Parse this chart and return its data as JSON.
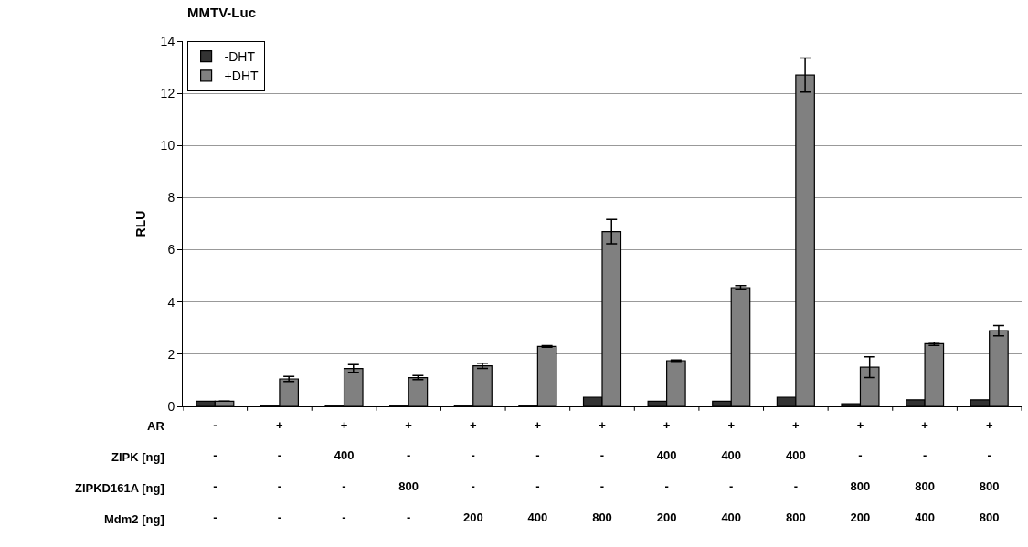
{
  "chart_data": {
    "type": "bar",
    "title": "MMTV-Luc",
    "ylabel": "RLU",
    "categories": [
      "-\n-\n-\n-",
      "+\n-\n-\n-",
      "+\n400\n-\n-",
      "+\n-\n800\n-",
      "+\n-\n-\n200",
      "+\n-\n-\n400",
      "+\n-\n-\n800",
      "+\n400\n-\n200",
      "+\n400\n-\n400",
      "+\n400\n-\n800",
      "+\n-\n800\n200",
      "+\n-\n800\n400",
      "+\n-\n800\n800"
    ],
    "annotations": [
      "AR",
      "ZIPK [ng]",
      "ZIPKD161A [ng]",
      "Mdm2 [ng]"
    ],
    "series": [
      {
        "name": "-DHT",
        "color": "#333333",
        "values": [
          0.2,
          0.05,
          0.05,
          0.05,
          0.05,
          0.05,
          0.35,
          0.2,
          0.2,
          0.35,
          0.1,
          0.25,
          0.25
        ]
      },
      {
        "name": "+DHT",
        "color": "#808080",
        "values": [
          0.2,
          1.05,
          1.45,
          1.1,
          1.55,
          2.3,
          6.7,
          1.75,
          4.55,
          12.7,
          1.5,
          2.4,
          2.9
        ],
        "errors": [
          null,
          0.1,
          0.15,
          0.08,
          0.1,
          0.03,
          0.47,
          0.03,
          0.08,
          0.65,
          0.4,
          0.06,
          0.2
        ]
      }
    ],
    "ylim": [
      0,
      14
    ],
    "yticks": [
      0,
      2,
      4,
      6,
      8,
      10,
      12,
      14
    ],
    "grid": "y",
    "legend": "top left"
  }
}
